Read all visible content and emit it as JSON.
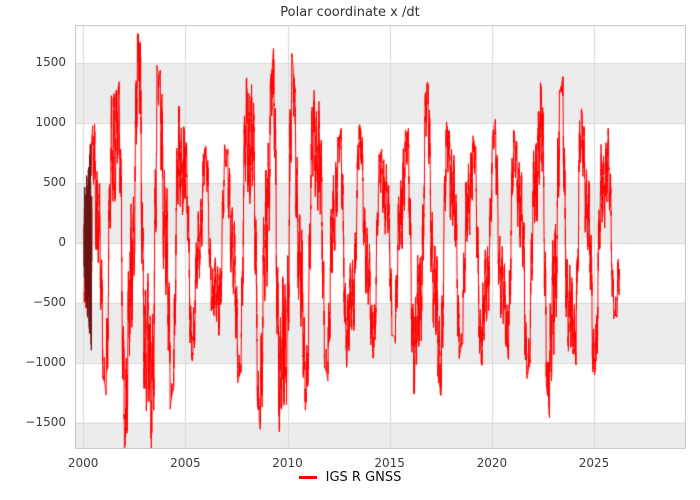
{
  "chart_data": {
    "type": "line",
    "title": "Polar coordinate x /dt",
    "xlabel": "",
    "ylabel": "",
    "xlim": [
      1999.6,
      2029.5
    ],
    "ylim": [
      -1720,
      1820
    ],
    "xticks": [
      2000,
      2005,
      2010,
      2015,
      2020,
      2025
    ],
    "yticks": [
      -1500,
      -1000,
      -500,
      0,
      500,
      1000,
      1500
    ],
    "grid": true,
    "stripe_color": "#ececec",
    "grid_color": "#d8d8d8",
    "border_color": "#c8c8c8",
    "legend": {
      "position": "bottom-center",
      "entries": [
        "IGS R GNSS"
      ]
    },
    "series": [
      {
        "name": "IGS R GNSS",
        "color": "#ff0000",
        "t_start": 2000.05,
        "t_end": 2026.25,
        "sample_step_years": 0.004,
        "components": {
          "main_period": 1.09,
          "main_phase": 2000.22,
          "secondary_period": 0.47,
          "secondary_phase": 0.8,
          "fast_period": 0.118,
          "fast_phase": 2.1,
          "weights": [
            0.8,
            0.3,
            0.22,
            0.14
          ],
          "cap_variation": [
            0.95,
            0.12,
            9.3
          ]
        },
        "amplitude_envelope": [
          [
            2000.1,
            520
          ],
          [
            2000.6,
            1250
          ],
          [
            2001.3,
            1450
          ],
          [
            2002.0,
            1600
          ],
          [
            2003.0,
            1650
          ],
          [
            2003.5,
            1740
          ],
          [
            2004.3,
            1550
          ],
          [
            2005.0,
            1020
          ],
          [
            2005.7,
            830
          ],
          [
            2006.3,
            700
          ],
          [
            2007.0,
            900
          ],
          [
            2008.0,
            1450
          ],
          [
            2008.8,
            1530
          ],
          [
            2009.5,
            1650
          ],
          [
            2010.2,
            1550
          ],
          [
            2011.0,
            1300
          ],
          [
            2011.5,
            1350
          ],
          [
            2012.5,
            1050
          ],
          [
            2013.2,
            950
          ],
          [
            2014.0,
            900
          ],
          [
            2015.0,
            880
          ],
          [
            2016.0,
            1150
          ],
          [
            2016.8,
            1260
          ],
          [
            2017.5,
            1200
          ],
          [
            2018.3,
            1050
          ],
          [
            2019.0,
            950
          ],
          [
            2020.0,
            1000
          ],
          [
            2021.0,
            950
          ],
          [
            2021.8,
            1150
          ],
          [
            2022.5,
            1350
          ],
          [
            2023.2,
            1600
          ],
          [
            2024.0,
            1100
          ],
          [
            2024.8,
            1060
          ],
          [
            2025.5,
            1000
          ],
          [
            2026.2,
            640
          ]
        ],
        "early_cluster": {
          "t_start": 2000.05,
          "t_end": 2000.42,
          "color": "#6b1212"
        }
      }
    ]
  }
}
